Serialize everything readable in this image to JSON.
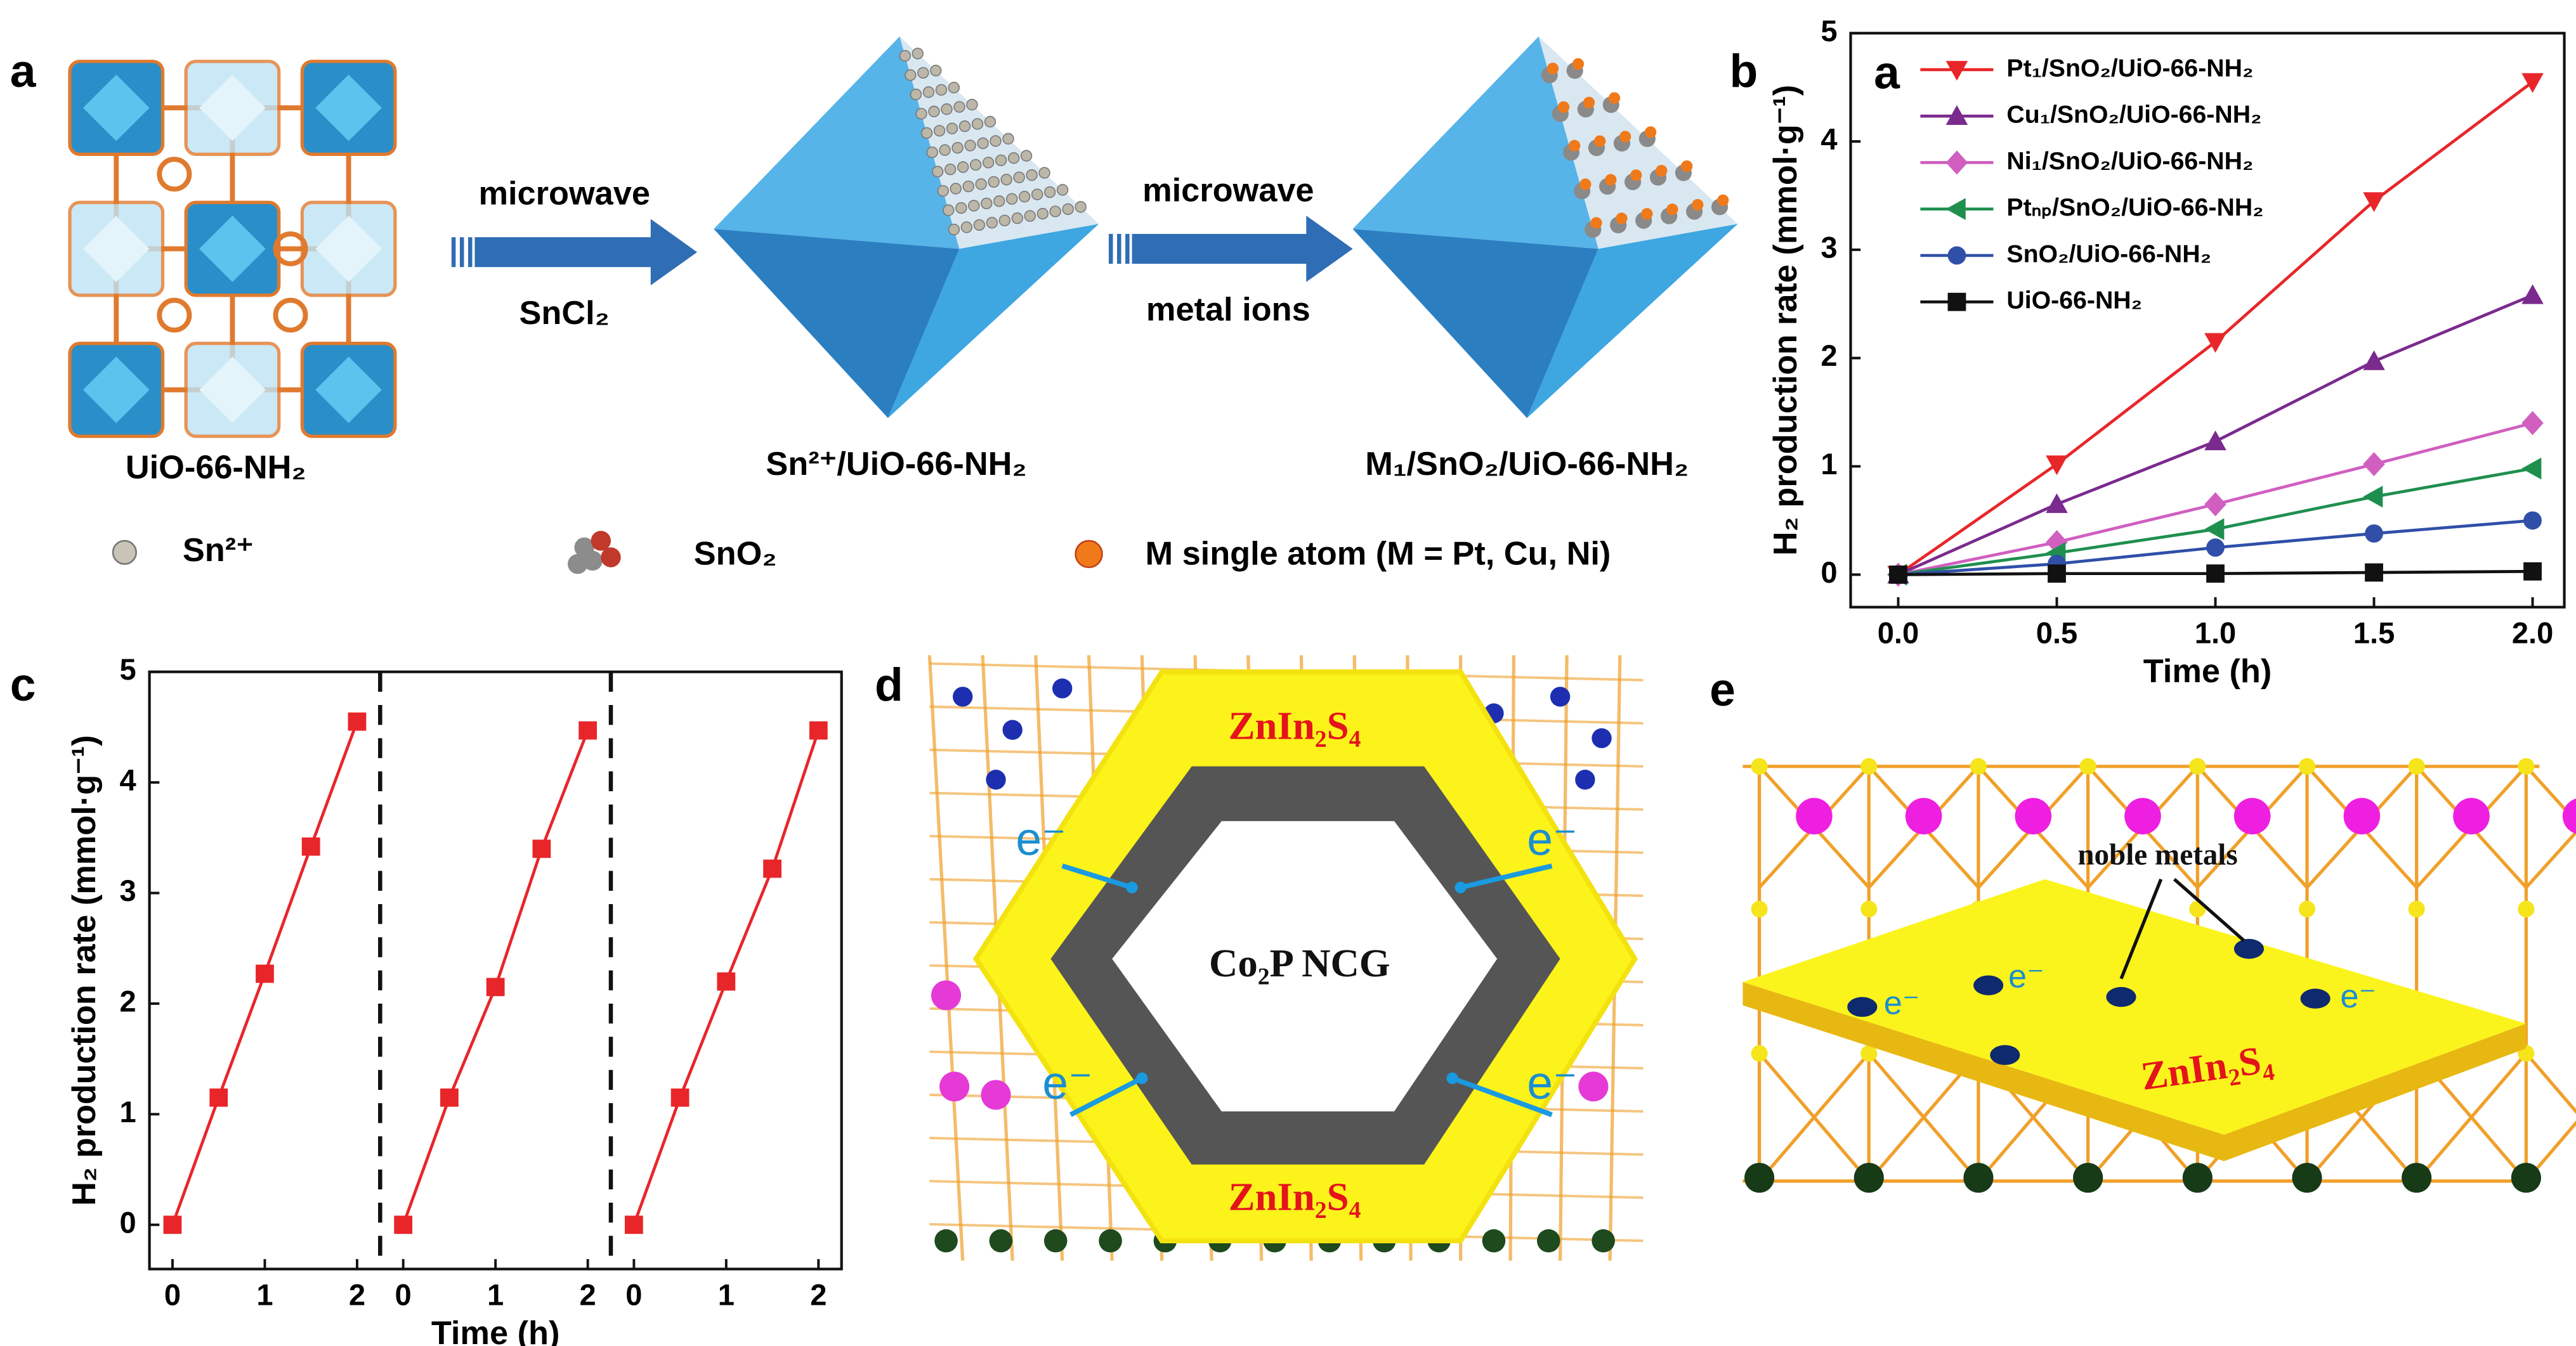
{
  "figure": {
    "panel_labels": [
      "a",
      "b",
      "c",
      "d",
      "e"
    ],
    "panel_a": {
      "steps": [
        "microwave",
        "SnCl₂",
        "microwave",
        "metal ions"
      ],
      "structures": [
        "UiO-66-NH₂",
        "Sn²⁺/UiO-66-NH₂",
        "M₁/SnO₂/UiO-66-NH₂"
      ],
      "legend": [
        "Sn²⁺",
        "SnO₂",
        "M single atom (M = Pt, Cu, Ni)"
      ]
    },
    "panel_d": {
      "shell_top": "ZnIn₂S₄",
      "core": "Co₂P NCG",
      "shell_bottom": "ZnIn₂S₄",
      "electrons": [
        "e⁻",
        "e⁻",
        "e⁻",
        "e⁻"
      ]
    },
    "panel_e": {
      "label": "noble metals",
      "support": "ZnIn₂S₄",
      "electrons": [
        "e⁻",
        "e⁻",
        "e⁻"
      ]
    }
  },
  "chart_data": [
    {
      "type": "line",
      "annotation": "a",
      "xlabel": "Time (h)",
      "ylabel": "H₂ production rate (mmol·g⁻¹)",
      "x": [
        0,
        0.5,
        1,
        1.5,
        2
      ],
      "xlim": [
        -0.15,
        2.1
      ],
      "ylim": [
        -0.3,
        5
      ],
      "xticks": [
        {
          "value": 0,
          "label": "0.0"
        },
        {
          "value": 0.5,
          "label": "0.5"
        },
        {
          "value": 1,
          "label": "1.0"
        },
        {
          "value": 1.5,
          "label": "1.5"
        },
        {
          "value": 2,
          "label": "2.0"
        }
      ],
      "yticks": [
        0,
        1,
        2,
        3,
        4,
        5
      ],
      "legend": "upper left",
      "series": [
        {
          "name": "Pt₁/SnO₂/UiO-66-NH₂",
          "color": "#e8262a",
          "marker": "triangle-down",
          "values": [
            0,
            1.02,
            2.15,
            3.45,
            4.55
          ]
        },
        {
          "name": "Cu₁/SnO₂/UiO-66-NH₂",
          "color": "#7b2a8e",
          "marker": "triangle-up",
          "values": [
            0,
            0.65,
            1.23,
            1.97,
            2.58
          ]
        },
        {
          "name": "Ni₁/SnO₂/UiO-66-NH₂",
          "color": "#d05fc0",
          "marker": "diamond",
          "values": [
            0,
            0.3,
            0.65,
            1.02,
            1.4
          ]
        },
        {
          "name": "Ptₙₚ/SnO₂/UiO-66-NH₂",
          "color": "#1f8f4e",
          "marker": "triangle-left",
          "values": [
            0,
            0.2,
            0.42,
            0.72,
            0.98
          ]
        },
        {
          "name": "SnO₂/UiO-66-NH₂",
          "color": "#2f4fa8",
          "marker": "circle",
          "values": [
            0,
            0.1,
            0.25,
            0.38,
            0.5
          ]
        },
        {
          "name": "UiO-66-NH₂",
          "color": "#111111",
          "marker": "square",
          "values": [
            0,
            0.01,
            0.01,
            0.02,
            0.03
          ]
        }
      ]
    },
    {
      "type": "line",
      "xlabel": "Time (h)",
      "ylabel": "H₂ production rate (mmol·g⁻¹)",
      "x": [
        0,
        0.5,
        1,
        1.5,
        2
      ],
      "xlim": [
        -0.25,
        2.25
      ],
      "ylim": [
        -0.4,
        5
      ],
      "xticks": [
        0,
        1,
        2
      ],
      "yticks": [
        0,
        1,
        2,
        3,
        4,
        5
      ],
      "color": "#e8262a",
      "marker": "square",
      "series": [
        {
          "values": [
            0,
            1.15,
            2.27,
            3.42,
            4.55
          ]
        },
        {
          "values": [
            0,
            1.15,
            2.15,
            3.4,
            4.47
          ]
        },
        {
          "values": [
            0,
            1.15,
            2.2,
            3.22,
            4.47
          ]
        }
      ]
    }
  ]
}
